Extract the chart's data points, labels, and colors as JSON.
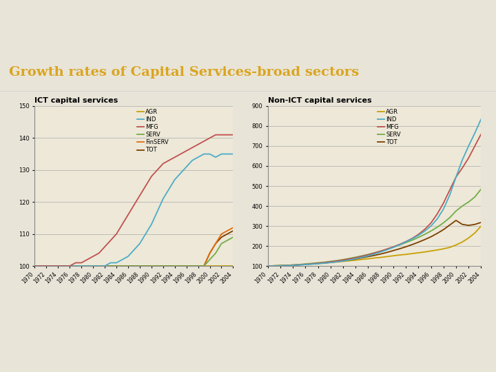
{
  "title": "Growth rates of Capital Services-broad sectors",
  "title_color": "#DAA520",
  "title_bg": "#1C1C1C",
  "header_bar_color": "#8B3A00",
  "top_bar_color": "#0A0A0A",
  "subtitle_left": "ICT capital services",
  "subtitle_right": "Non-ICT capital services",
  "years": [
    1970,
    1971,
    1972,
    1973,
    1974,
    1975,
    1976,
    1977,
    1978,
    1979,
    1980,
    1981,
    1982,
    1983,
    1984,
    1985,
    1986,
    1987,
    1988,
    1989,
    1990,
    1991,
    1992,
    1993,
    1994,
    1995,
    1996,
    1997,
    1998,
    1999,
    2000,
    2001,
    2002,
    2003,
    2004
  ],
  "ict": {
    "AGR": [
      100,
      100,
      100,
      100,
      100,
      100,
      100,
      100,
      100,
      100,
      100,
      100,
      100,
      100,
      100,
      100,
      100,
      100,
      100,
      100,
      100,
      100,
      100,
      100,
      100,
      100,
      100,
      100,
      100,
      100,
      100,
      100,
      100,
      100,
      100
    ],
    "IND": [
      100,
      100,
      100,
      100,
      100,
      100,
      100,
      100,
      100,
      100,
      100,
      100,
      100,
      101,
      101,
      102,
      103,
      105,
      107,
      110,
      113,
      117,
      121,
      124,
      127,
      129,
      131,
      133,
      134,
      135,
      135,
      134,
      135,
      135,
      135
    ],
    "MFG": [
      100,
      100,
      100,
      100,
      100,
      100,
      100,
      101,
      101,
      102,
      103,
      104,
      106,
      108,
      110,
      113,
      116,
      119,
      122,
      125,
      128,
      130,
      132,
      133,
      134,
      135,
      136,
      137,
      138,
      139,
      140,
      141,
      141,
      141,
      141
    ],
    "SERV": [
      100,
      100,
      100,
      100,
      100,
      100,
      100,
      100,
      100,
      100,
      100,
      100,
      100,
      100,
      100,
      100,
      100,
      100,
      100,
      100,
      100,
      100,
      100,
      100,
      100,
      100,
      100,
      100,
      100,
      100,
      102,
      104,
      107,
      108,
      109
    ],
    "FinSERV": [
      100,
      100,
      100,
      100,
      100,
      100,
      100,
      100,
      100,
      100,
      100,
      100,
      100,
      100,
      100,
      100,
      100,
      100,
      100,
      100,
      100,
      100,
      100,
      100,
      100,
      100,
      100,
      100,
      100,
      100,
      104,
      107,
      110,
      111,
      112
    ],
    "TOT": [
      100,
      100,
      100,
      100,
      100,
      100,
      100,
      100,
      100,
      100,
      100,
      100,
      100,
      100,
      100,
      100,
      100,
      100,
      100,
      100,
      100,
      100,
      100,
      100,
      100,
      100,
      100,
      100,
      100,
      100,
      104,
      107,
      109,
      110,
      111
    ]
  },
  "non_ict": {
    "AGR": [
      100,
      101,
      102,
      103,
      105,
      107,
      109,
      111,
      113,
      115,
      118,
      120,
      123,
      126,
      129,
      133,
      136,
      140,
      143,
      147,
      151,
      155,
      158,
      162,
      166,
      170,
      175,
      180,
      186,
      193,
      205,
      220,
      240,
      265,
      300
    ],
    "IND": [
      100,
      100,
      101,
      102,
      103,
      105,
      107,
      109,
      111,
      114,
      117,
      121,
      125,
      130,
      136,
      143,
      151,
      160,
      170,
      181,
      193,
      206,
      220,
      236,
      253,
      274,
      300,
      335,
      385,
      455,
      545,
      630,
      700,
      765,
      835
    ],
    "MFG": [
      100,
      100,
      101,
      102,
      104,
      106,
      108,
      111,
      114,
      117,
      121,
      125,
      130,
      135,
      141,
      148,
      156,
      165,
      174,
      185,
      196,
      208,
      222,
      238,
      258,
      283,
      315,
      360,
      415,
      480,
      545,
      590,
      640,
      700,
      760
    ],
    "SERV": [
      100,
      101,
      102,
      103,
      105,
      107,
      110,
      113,
      116,
      119,
      123,
      127,
      132,
      138,
      144,
      151,
      158,
      166,
      175,
      184,
      194,
      205,
      217,
      229,
      243,
      258,
      275,
      294,
      316,
      342,
      375,
      400,
      420,
      445,
      485
    ],
    "TOT": [
      100,
      101,
      102,
      103,
      104,
      106,
      108,
      110,
      113,
      115,
      118,
      122,
      126,
      130,
      135,
      141,
      147,
      153,
      160,
      168,
      177,
      186,
      196,
      207,
      219,
      232,
      246,
      263,
      282,
      305,
      328,
      308,
      303,
      308,
      318
    ]
  },
  "ict_colors": {
    "AGR": "#C8A000",
    "IND": "#4BACC6",
    "MFG": "#C0504D",
    "SERV": "#70AD47",
    "FinSERV": "#E36C09",
    "TOT": "#7B3F00"
  },
  "non_ict_colors": {
    "AGR": "#C8A000",
    "IND": "#4BACC6",
    "MFG": "#C0504D",
    "SERV": "#70AD47",
    "TOT": "#7B3F00"
  },
  "ict_ylim": [
    100,
    150
  ],
  "ict_yticks": [
    100,
    110,
    120,
    130,
    140,
    150
  ],
  "non_ict_ylim": [
    100,
    900
  ],
  "non_ict_yticks": [
    100,
    200,
    300,
    400,
    500,
    600,
    700,
    800,
    900
  ],
  "bg_color": "#EDE8D8",
  "slide_bg": "#E8E4D8",
  "plot_area_bg": "#FFFFFF"
}
